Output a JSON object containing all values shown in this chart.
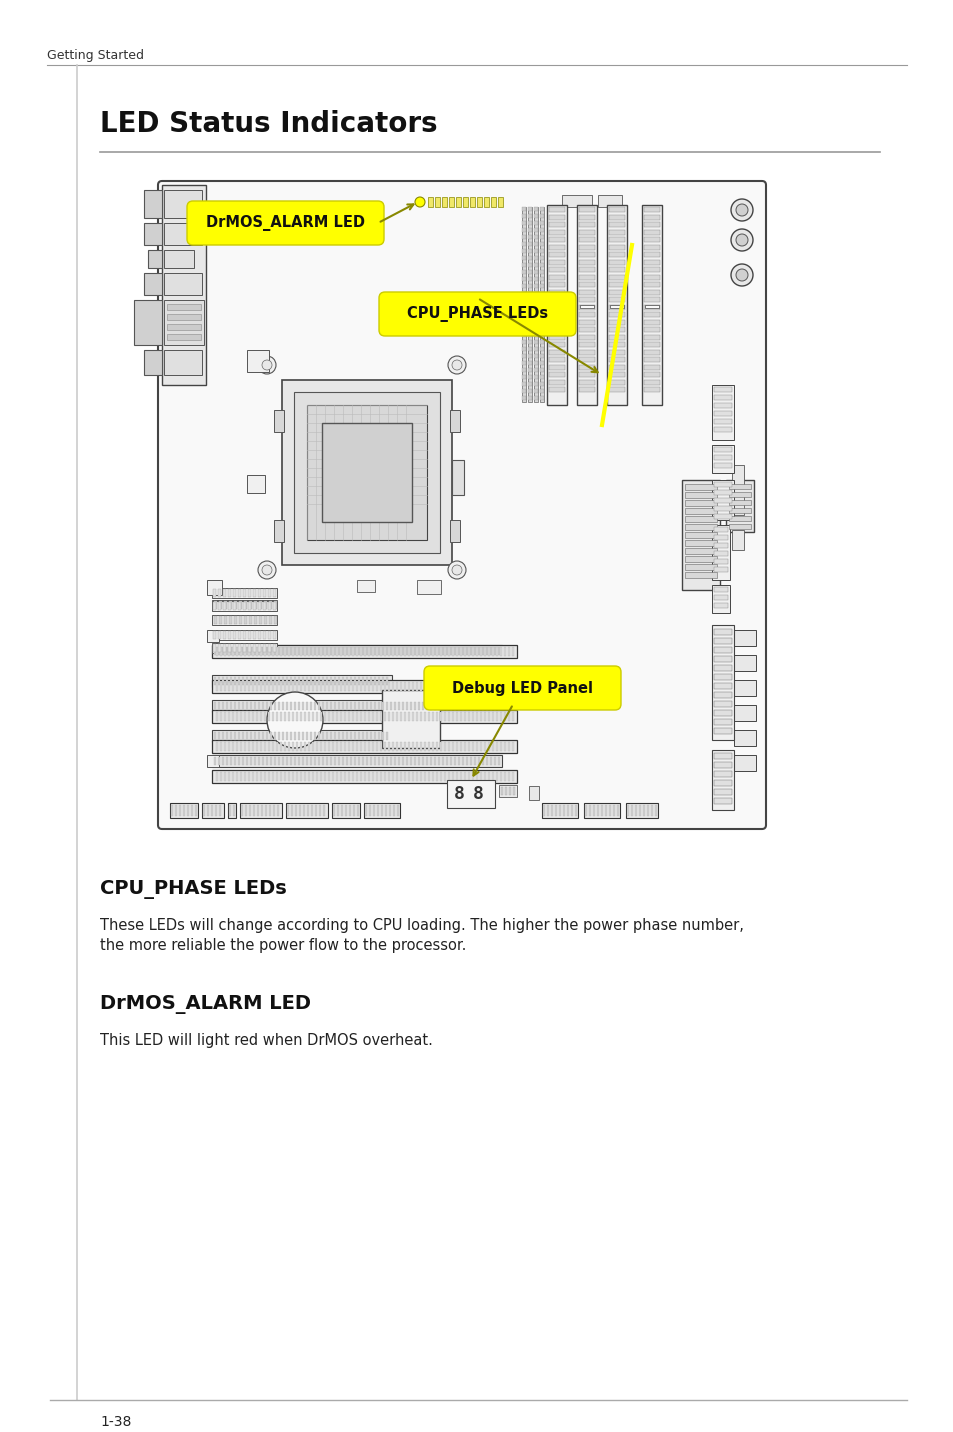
{
  "page_title": "LED Status Indicators",
  "header_text": "Getting Started",
  "footer_text": "1-38",
  "section1_title": "CPU_PHASE LEDs",
  "section1_body1": "These LEDs will change according to CPU loading. The higher the power phase number,",
  "section1_body2": "the more reliable the power flow to the processor.",
  "section2_title": "DrMOS_ALARM LED",
  "section2_body": "This LED will light red when DrMOS overheat.",
  "label1": "DrMOS_ALARM LED",
  "label2": "CPU_PHASE LEDs",
  "label3": "Debug LED Panel",
  "bg_color": "#ffffff",
  "header_bar_color": "#999999",
  "board_stroke": "#333333",
  "label_bg_color": "#ffff00",
  "label_text_color": "#000000",
  "title_color": "#111111",
  "body_color": "#222222"
}
